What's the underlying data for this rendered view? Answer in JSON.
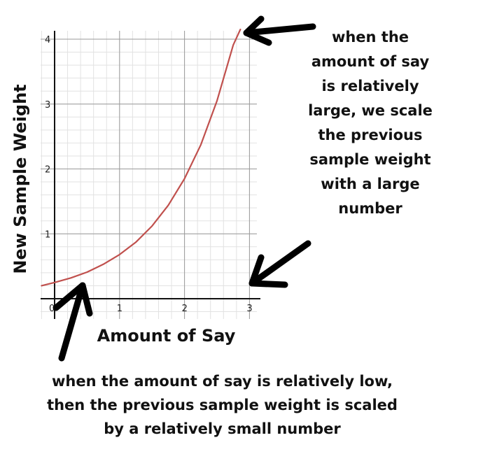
{
  "chart_data": {
    "type": "line",
    "title": "",
    "xlabel": "Amount of Say",
    "ylabel": "New Sample Weight",
    "xlim": [
      -0.2,
      3.05
    ],
    "ylim": [
      -0.3,
      4.15
    ],
    "x_ticks": [
      "0",
      "1",
      "2",
      "3"
    ],
    "y_ticks": [
      "1",
      "2",
      "3",
      "4"
    ],
    "grid": true,
    "series": [
      {
        "color": "#c0504d",
        "function": "0.25 * e^x",
        "x": [
          -0.2,
          0,
          0.25,
          0.5,
          0.75,
          1.0,
          1.25,
          1.5,
          1.75,
          2.0,
          2.25,
          2.5,
          2.75,
          2.86
        ],
        "y": [
          0.2,
          0.25,
          0.32,
          0.41,
          0.53,
          0.68,
          0.87,
          1.12,
          1.44,
          1.85,
          2.37,
          3.05,
          3.91,
          4.15
        ]
      }
    ]
  },
  "annotations": {
    "right_lines": [
      "when the",
      "amount of say",
      "is relatively",
      "large, we scale",
      "the previous",
      "sample weight",
      "with a large",
      "number"
    ],
    "bottom_lines": [
      "when the amount of say is relatively low,",
      "then the previous sample weight is scaled",
      "by a relatively small number"
    ]
  }
}
